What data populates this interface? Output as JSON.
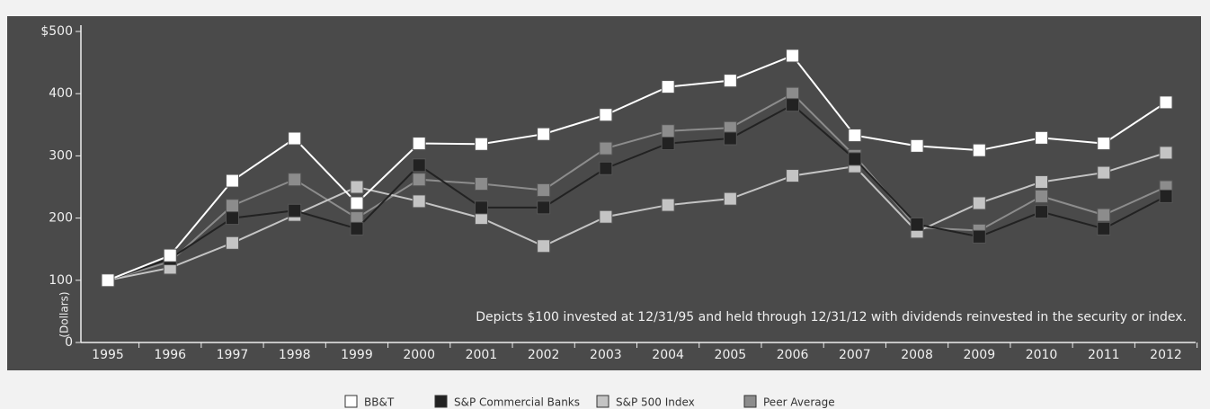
{
  "chart_data": {
    "type": "line",
    "y_label": "(Dollars)",
    "annotation": "Depicts $100 invested at 12/31/95 and held through 12/31/12 with dividends reinvested in the security or index.",
    "categories": [
      "1995",
      "1996",
      "1997",
      "1998",
      "1999",
      "2000",
      "2001",
      "2002",
      "2003",
      "2004",
      "2005",
      "2006",
      "2007",
      "2008",
      "2009",
      "2010",
      "2011",
      "2012"
    ],
    "ylim": [
      0,
      500
    ],
    "yticks": [
      0,
      100,
      200,
      300,
      400,
      {
        "value": 500,
        "label": "$500"
      }
    ],
    "grid": false,
    "legend": "bottom",
    "series": [
      {
        "name": "BB&T",
        "color": "#ffffff",
        "values": [
          100,
          140,
          260,
          328,
          224,
          320,
          319,
          335,
          366,
          411,
          421,
          461,
          333,
          316,
          309,
          329,
          320,
          386
        ]
      },
      {
        "name": "S&P Commercial Banks",
        "color": "#222222",
        "values": [
          100,
          135,
          200,
          212,
          183,
          285,
          217,
          217,
          280,
          320,
          328,
          382,
          295,
          190,
          170,
          210,
          183,
          235
        ]
      },
      {
        "name": "S&P 500 Index",
        "color": "#c4c4c4",
        "values": [
          100,
          120,
          160,
          205,
          250,
          227,
          200,
          155,
          202,
          221,
          231,
          268,
          283,
          178,
          224,
          258,
          273,
          305
        ]
      },
      {
        "name": "Peer Average",
        "color": "#8c8c8c",
        "values": [
          100,
          130,
          220,
          262,
          200,
          262,
          255,
          245,
          312,
          340,
          345,
          400,
          300,
          185,
          180,
          235,
          205,
          250
        ]
      }
    ]
  }
}
